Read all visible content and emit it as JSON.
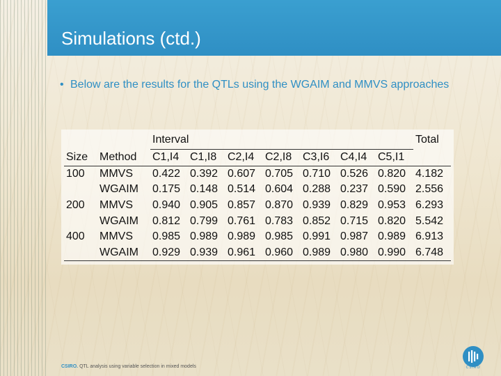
{
  "slide": {
    "title": "Simulations (ctd.)",
    "bullet": "Below are the results for the QTLs using the WGAIM and MMVS approaches"
  },
  "table": {
    "group_header": "Interval",
    "total_header": "Total",
    "columns": [
      "Size",
      "Method",
      "C1,I4",
      "C1,I8",
      "C2,I4",
      "C2,I8",
      "C3,I6",
      "C4,I4",
      "C5,I1"
    ],
    "rows": [
      {
        "size": "100",
        "method": "MMVS",
        "values": [
          "0.422",
          "0.392",
          "0.607",
          "0.705",
          "0.710",
          "0.526",
          "0.820"
        ],
        "total": "4.182"
      },
      {
        "size": "",
        "method": "WGAIM",
        "values": [
          "0.175",
          "0.148",
          "0.514",
          "0.604",
          "0.288",
          "0.237",
          "0.590"
        ],
        "total": "2.556"
      },
      {
        "size": "200",
        "method": "MMVS",
        "values": [
          "0.940",
          "0.905",
          "0.857",
          "0.870",
          "0.939",
          "0.829",
          "0.953"
        ],
        "total": "6.293"
      },
      {
        "size": "",
        "method": "WGAIM",
        "values": [
          "0.812",
          "0.799",
          "0.761",
          "0.783",
          "0.852",
          "0.715",
          "0.820"
        ],
        "total": "5.542"
      },
      {
        "size": "400",
        "method": "MMVS",
        "values": [
          "0.985",
          "0.989",
          "0.989",
          "0.985",
          "0.991",
          "0.987",
          "0.989"
        ],
        "total": "6.913"
      },
      {
        "size": "",
        "method": "WGAIM",
        "values": [
          "0.929",
          "0.939",
          "0.961",
          "0.960",
          "0.989",
          "0.980",
          "0.990"
        ],
        "total": "6.748"
      }
    ]
  },
  "footer": {
    "org": "CSIRO.",
    "text": "QTL analysis using variable selection in mixed models",
    "logo_caption": "CSIRO"
  },
  "colors": {
    "accent": "#2f8fc4",
    "title_text": "#ffffff",
    "body_text": "#111111"
  },
  "icons": {
    "logo": "csiro-logo-icon"
  }
}
